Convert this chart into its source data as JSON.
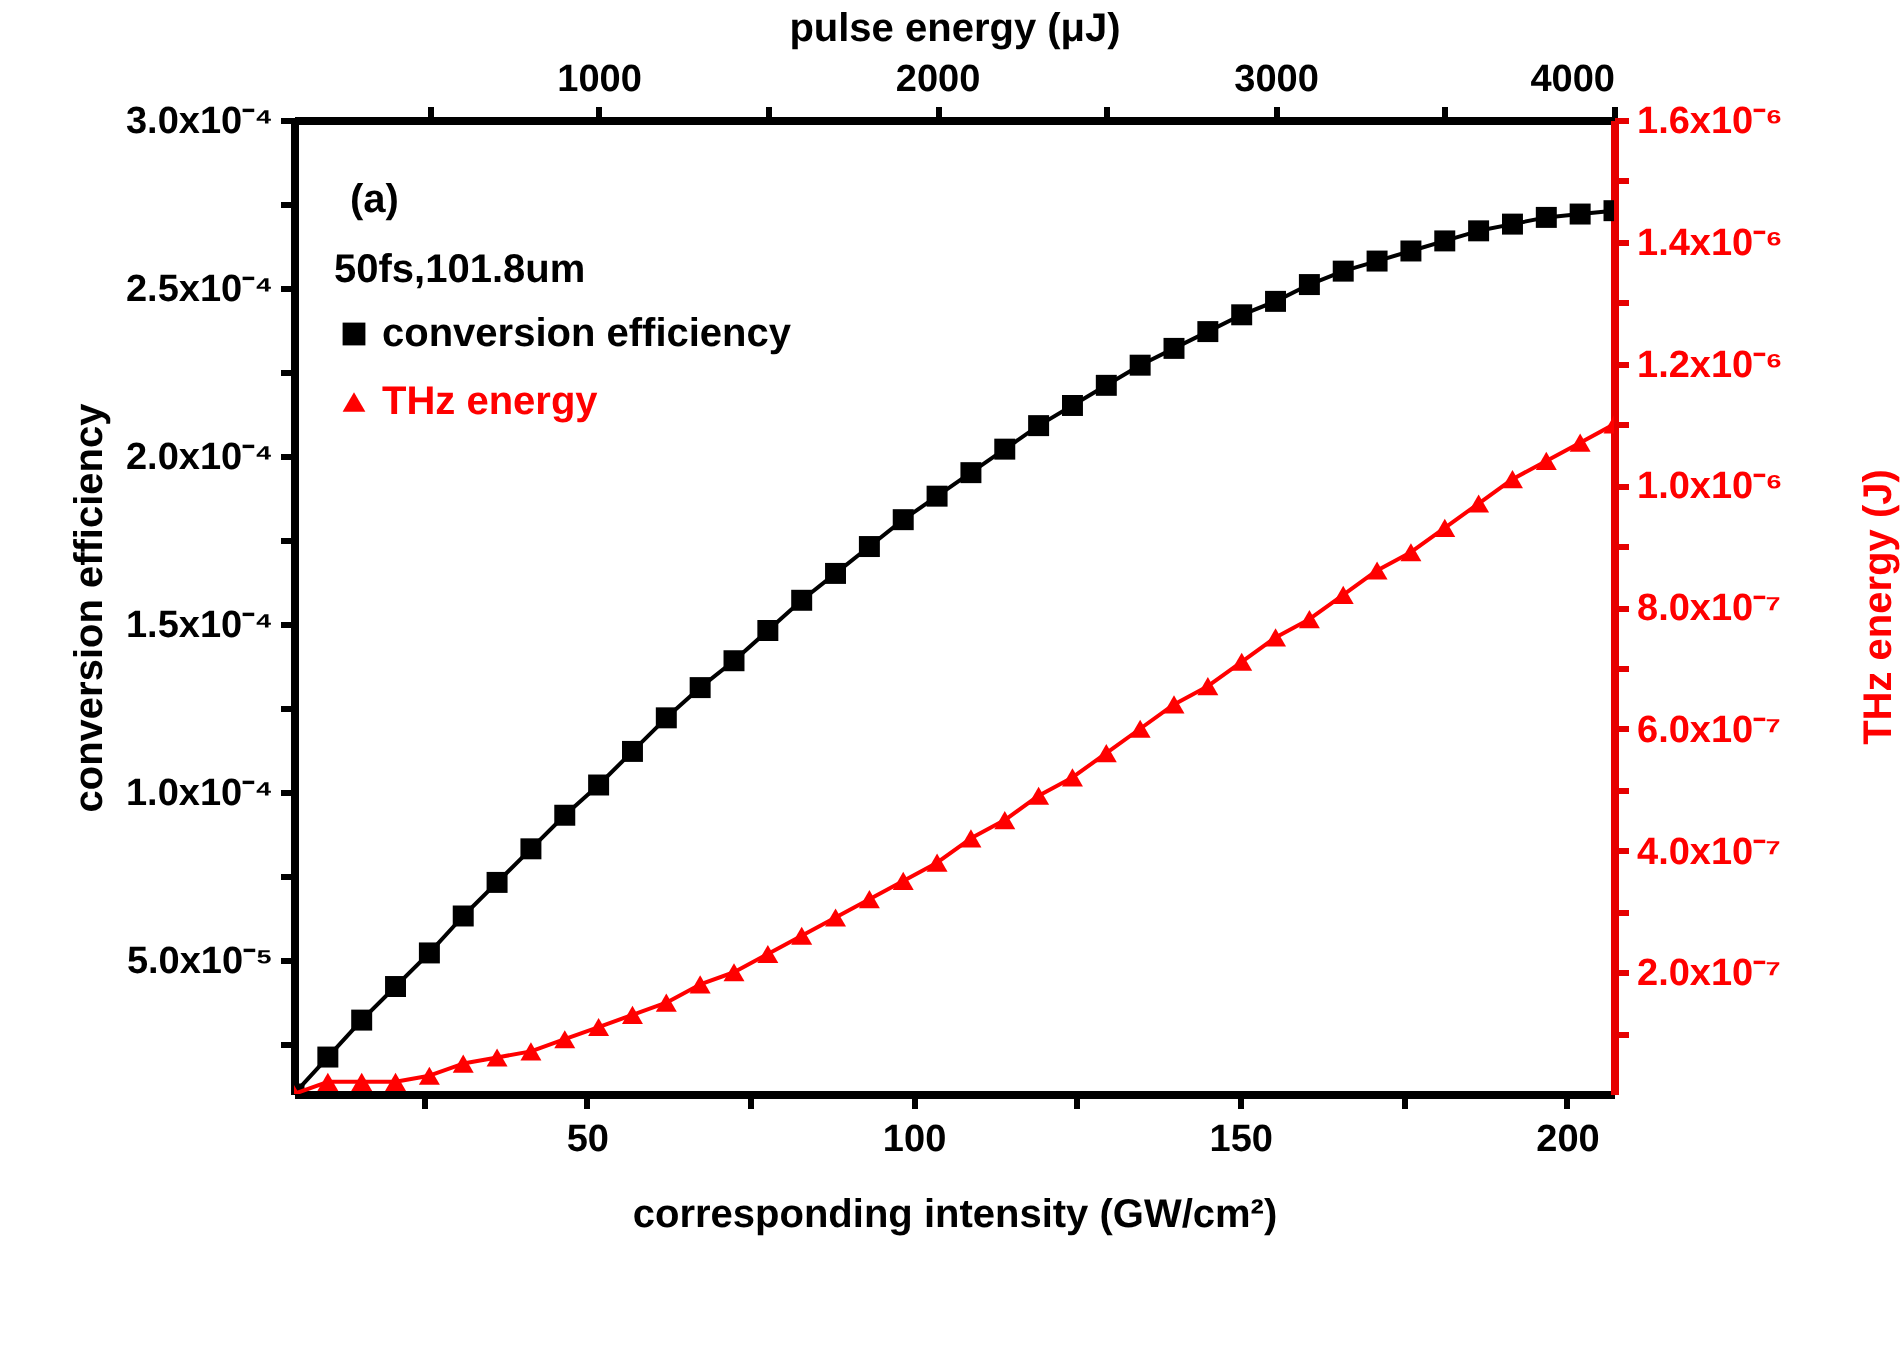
{
  "chart_data": {
    "type": "line",
    "xlabel": "corresponding intensity (GW/cm²)",
    "x2label": "pulse energy (μJ)",
    "ylabel": "conversion efficiency",
    "y2label": "THz energy (J)",
    "legend_title": "50fs,101.8um",
    "legend": "top left",
    "grid": false,
    "annotations": [
      "(a)"
    ],
    "x": [
      5.18,
      10.36,
      15.54,
      20.72,
      25.9,
      31.08,
      36.26,
      41.44,
      46.62,
      51.8,
      56.98,
      62.16,
      67.34,
      72.52,
      77.7,
      82.88,
      88.06,
      93.24,
      98.42,
      103.6,
      108.78,
      113.96,
      119.14,
      124.32,
      129.5,
      134.68,
      139.86,
      145.04,
      150.22,
      155.4,
      160.58,
      165.76,
      170.94,
      176.12,
      181.3,
      186.48,
      191.66,
      196.84,
      202.02,
      207.2
    ],
    "xlim": [
      5.18,
      207.2
    ],
    "xticks": [
      {
        "value": 25,
        "label": null
      },
      50,
      {
        "value": 75,
        "label": null
      },
      100,
      {
        "value": 125,
        "label": null
      },
      150,
      {
        "value": 175,
        "label": null
      },
      200
    ],
    "x2lim": [
      100,
      4000
    ],
    "x2ticks": [
      {
        "value": 500,
        "label": null
      },
      1000,
      {
        "value": 1500,
        "label": null
      },
      2000,
      {
        "value": 2500,
        "label": null
      },
      3000,
      {
        "value": 3500,
        "label": null
      },
      4000
    ],
    "ylim": [
      1e-05,
      0.0003
    ],
    "yticks": [
      {
        "value": 2.5e-05,
        "label": null
      },
      {
        "value": 5e-05,
        "label": "5.0x10⁻⁵"
      },
      {
        "value": 7.5e-05,
        "label": null
      },
      {
        "value": 0.0001,
        "label": "1.0x10⁻⁴"
      },
      {
        "value": 0.000125,
        "label": null
      },
      {
        "value": 0.00015,
        "label": "1.5x10⁻⁴"
      },
      {
        "value": 0.000175,
        "label": null
      },
      {
        "value": 0.0002,
        "label": "2.0x10⁻⁴"
      },
      {
        "value": 0.000225,
        "label": null
      },
      {
        "value": 0.00025,
        "label": "2.5x10⁻⁴"
      },
      {
        "value": 0.000275,
        "label": null
      },
      {
        "value": 0.0003,
        "label": "3.0x10⁻⁴"
      }
    ],
    "y2lim": [
      0,
      1.6e-06
    ],
    "y2ticks": [
      {
        "value": 1e-07,
        "label": null
      },
      {
        "value": 2e-07,
        "label": "2.0x10⁻⁷"
      },
      {
        "value": 3e-07,
        "label": null
      },
      {
        "value": 4e-07,
        "label": "4.0x10⁻⁷"
      },
      {
        "value": 5e-07,
        "label": null
      },
      {
        "value": 6e-07,
        "label": "6.0x10⁻⁷"
      },
      {
        "value": 7e-07,
        "label": null
      },
      {
        "value": 8e-07,
        "label": "8.0x10⁻⁷"
      },
      {
        "value": 9e-07,
        "label": null
      },
      {
        "value": 1e-06,
        "label": "1.0x10⁻⁶"
      },
      {
        "value": 1.1e-06,
        "label": null
      },
      {
        "value": 1.2e-06,
        "label": "1.2x10⁻⁶"
      },
      {
        "value": 1.3e-06,
        "label": null
      },
      {
        "value": 1.4e-06,
        "label": "1.4x10⁻⁶"
      },
      {
        "value": 1.5e-06,
        "label": null
      },
      {
        "value": 1.6e-06,
        "label": "1.6x10⁻⁶"
      }
    ],
    "series": [
      {
        "name": "conversion efficiency",
        "color": "#000000",
        "marker": "square",
        "values": [
          1e-05,
          2.1e-05,
          3.2e-05,
          4.2e-05,
          5.2e-05,
          6.3e-05,
          7.3e-05,
          8.3e-05,
          9.3e-05,
          0.000102,
          0.000112,
          0.000122,
          0.000131,
          0.000139,
          0.000148,
          0.000157,
          0.000165,
          0.000173,
          0.000181,
          0.000188,
          0.000195,
          0.000202,
          0.000209,
          0.000215,
          0.000221,
          0.000227,
          0.000232,
          0.000237,
          0.000242,
          0.000246,
          0.000251,
          0.000255,
          0.000258,
          0.000261,
          0.000264,
          0.000267,
          0.000269,
          0.000271,
          0.000272,
          0.000273
        ]
      },
      {
        "name": "THz energy",
        "color": "#ff0000",
        "marker": "triangle",
        "axis": "y2",
        "values": [
          0,
          2e-08,
          2e-08,
          2e-08,
          3e-08,
          5e-08,
          6e-08,
          7e-08,
          9e-08,
          1.1e-07,
          1.3e-07,
          1.5e-07,
          1.8e-07,
          2e-07,
          2.3e-07,
          2.6e-07,
          2.9e-07,
          3.2e-07,
          3.5e-07,
          3.8e-07,
          4.2e-07,
          4.5e-07,
          4.9e-07,
          5.2e-07,
          5.6e-07,
          6e-07,
          6.4e-07,
          6.7e-07,
          7.1e-07,
          7.5e-07,
          7.8e-07,
          8.2e-07,
          8.6e-07,
          8.9e-07,
          9.3e-07,
          9.7e-07,
          1.01e-06,
          1.04e-06,
          1.07e-06,
          1.1e-06
        ]
      }
    ]
  }
}
